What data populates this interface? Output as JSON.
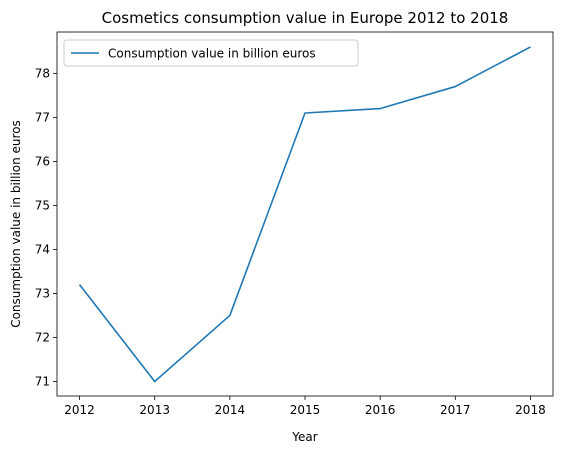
{
  "chart_data": {
    "type": "line",
    "title": "Cosmetics consumption value in Europe 2012 to 2018",
    "xlabel": "Year",
    "ylabel": "Consumption value in billion euros",
    "x": [
      "2012",
      "2013",
      "2014",
      "2015",
      "2016",
      "2017",
      "2018"
    ],
    "series": [
      {
        "name": "Consumption value in billion euros",
        "values": [
          73.2,
          71.0,
          72.5,
          77.1,
          77.2,
          77.7,
          78.6
        ],
        "color": "#1f77b4"
      }
    ],
    "xlim": [
      2011.7,
      2018.3
    ],
    "ylim": [
      70.67,
      78.94
    ],
    "yticks": [
      "71",
      "72",
      "73",
      "74",
      "75",
      "76",
      "77",
      "78"
    ],
    "grid": false,
    "legend_position": "top-left"
  }
}
